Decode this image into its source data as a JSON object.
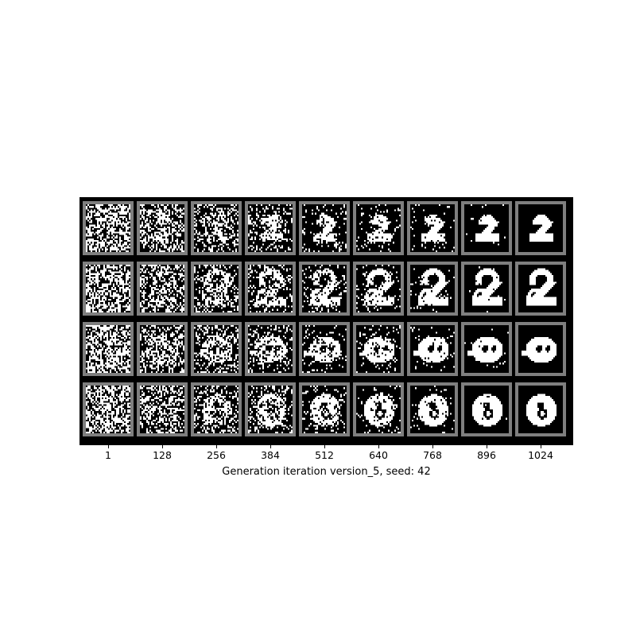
{
  "figure": {
    "xlabel": "Generation iteration version_5, seed: 42",
    "x_ticks": [
      "1",
      "128",
      "256",
      "384",
      "512",
      "640",
      "768",
      "896",
      "1024"
    ],
    "rows": [
      {
        "digit_icon": "digit-2-small-icon"
      },
      {
        "digit_icon": "digit-2-large-icon"
      },
      {
        "digit_icon": "blob-shape-icon"
      },
      {
        "digit_icon": "digit-8-icon"
      }
    ],
    "colors": {
      "frame": "#000000",
      "cell_border": "#7f7f7f",
      "pixel_on": "#ffffff",
      "pixel_off": "#000000"
    }
  }
}
